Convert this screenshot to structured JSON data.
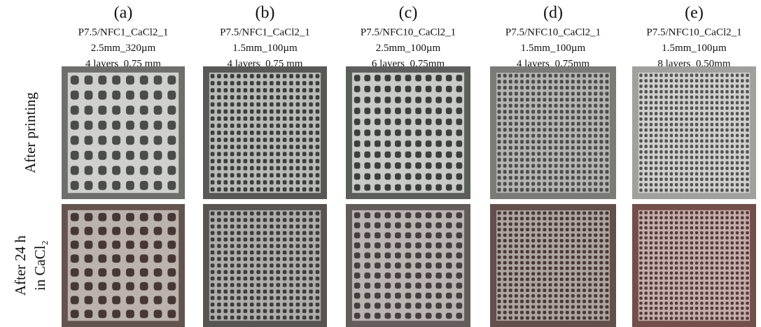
{
  "columns": [
    {
      "label": "(a)",
      "lines": [
        "P7.5/NFC1_CaCl2_1",
        "2.5mm_320µm",
        "4 layers_0.75 mm"
      ]
    },
    {
      "label": "(b)",
      "lines": [
        "P7.5/NFC1_CaCl2_1",
        "1.5mm_100µm",
        "4 layers_0.75 mm"
      ]
    },
    {
      "label": "(c)",
      "lines": [
        "P7.5/NFC10_CaCl2_1",
        "2.5mm_100µm",
        "6 layers_0.75mm"
      ]
    },
    {
      "label": "(d)",
      "lines": [
        "P7.5/NFC10_CaCl2_1",
        "1.5mm_100µm",
        "4 layers_0.75mm"
      ]
    },
    {
      "label": "(e)",
      "lines": [
        "P7.5/NFC10_CaCl2_1",
        "1.5mm_100µm",
        "8 layers_0.50mm"
      ]
    }
  ],
  "rows": [
    {
      "label": [
        "After printing"
      ]
    },
    {
      "label": [
        "After 24 h",
        "in CaCl₂"
      ]
    }
  ]
}
